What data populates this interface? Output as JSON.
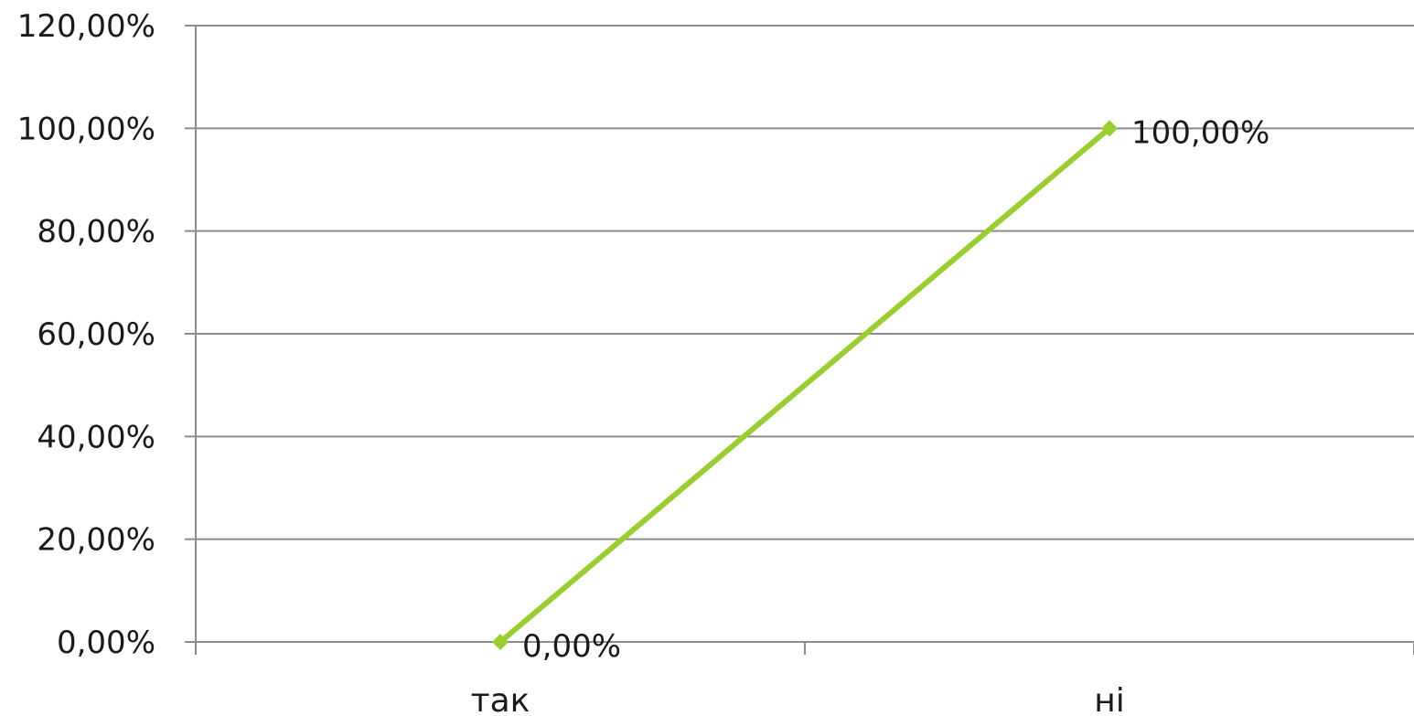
{
  "chart_data": {
    "type": "line",
    "title": "",
    "xlabel": "",
    "ylabel": "",
    "categories": [
      "так",
      "ні"
    ],
    "series": [
      {
        "values": [
          0,
          100
        ],
        "data_labels": [
          "0,00%",
          "100,00%"
        ],
        "color": "#9ACD32"
      }
    ],
    "ylim": [
      0,
      120
    ],
    "y_ticks": [
      0,
      20,
      40,
      60,
      80,
      100,
      120
    ],
    "y_tick_labels": [
      "0,00%",
      "20,00%",
      "40,00%",
      "60,00%",
      "80,00%",
      "100,00%",
      "120,00%"
    ],
    "grid": true,
    "legend": "none",
    "gridline_color": "#8c8c8c",
    "marker": "diamond"
  }
}
